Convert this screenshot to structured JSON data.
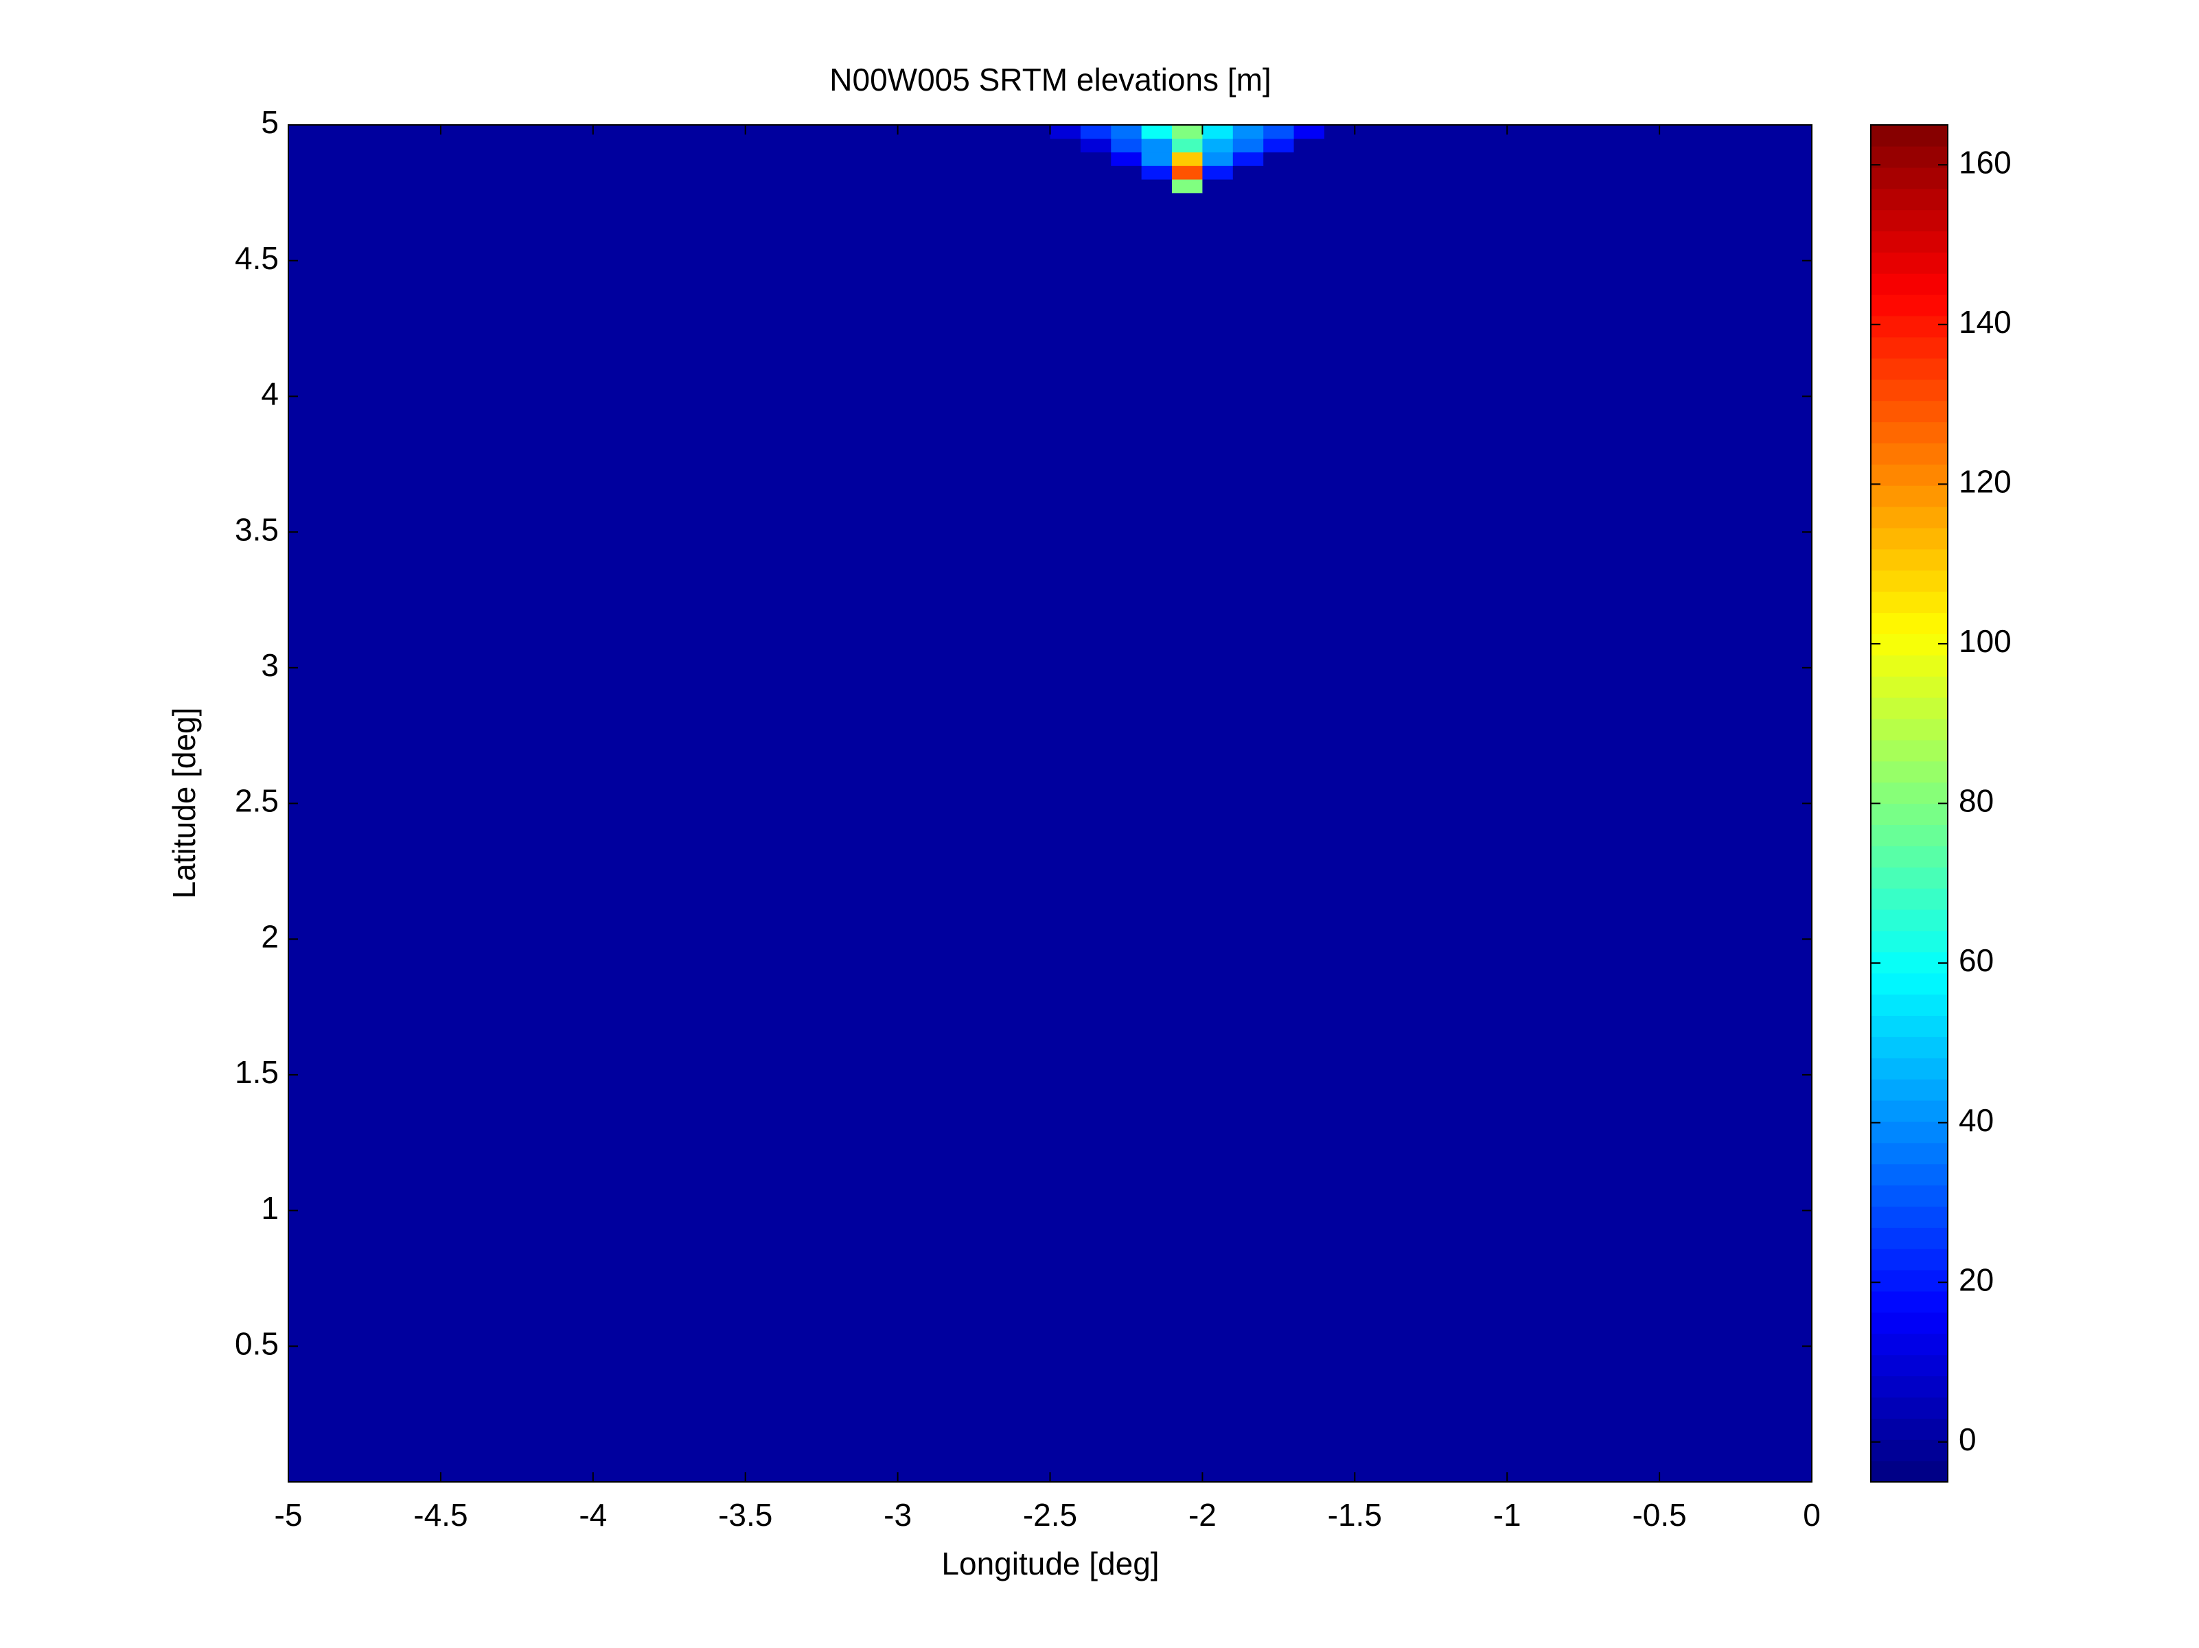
{
  "chart_data": {
    "type": "heatmap",
    "title": "N00W005 SRTM elevations [m]",
    "xlabel": "Longitude [deg]",
    "ylabel": "Latitude [deg]",
    "colormap": "jet",
    "x_edges": [
      -5,
      -2.5,
      -2.4,
      -2.3,
      -2.2,
      -2.1,
      -2.0,
      -1.9,
      -1.8,
      -1.7,
      -1.6,
      0
    ],
    "y_edges": [
      0,
      4.75,
      4.8,
      4.85,
      4.9,
      4.95,
      5
    ],
    "z": [
      [
        0,
        0,
        0,
        0,
        0,
        0,
        0,
        0,
        0,
        0,
        0
      ],
      [
        0,
        0,
        0,
        0,
        0,
        80,
        0,
        0,
        0,
        0,
        0
      ],
      [
        0,
        0,
        0,
        0,
        20,
        130,
        20,
        0,
        0,
        0,
        0
      ],
      [
        0,
        0,
        0,
        15,
        40,
        110,
        40,
        20,
        0,
        0,
        0
      ],
      [
        0,
        0,
        10,
        30,
        40,
        70,
        45,
        35,
        20,
        0,
        0
      ],
      [
        0,
        10,
        25,
        35,
        60,
        80,
        55,
        40,
        30,
        15,
        0
      ]
    ],
    "xlim": [
      -5,
      0
    ],
    "xticks": [
      -5,
      -4.5,
      -4,
      -3.5,
      -3,
      -2.5,
      -2,
      -1.5,
      -1,
      -0.5,
      0
    ],
    "ylim": [
      0,
      5
    ],
    "yticks": [
      0.5,
      1,
      1.5,
      2,
      2.5,
      3,
      3.5,
      4,
      4.5,
      5
    ],
    "clim": [
      -5,
      165
    ],
    "cticks": [
      0,
      20,
      40,
      60,
      80,
      100,
      120,
      140,
      160
    ]
  }
}
